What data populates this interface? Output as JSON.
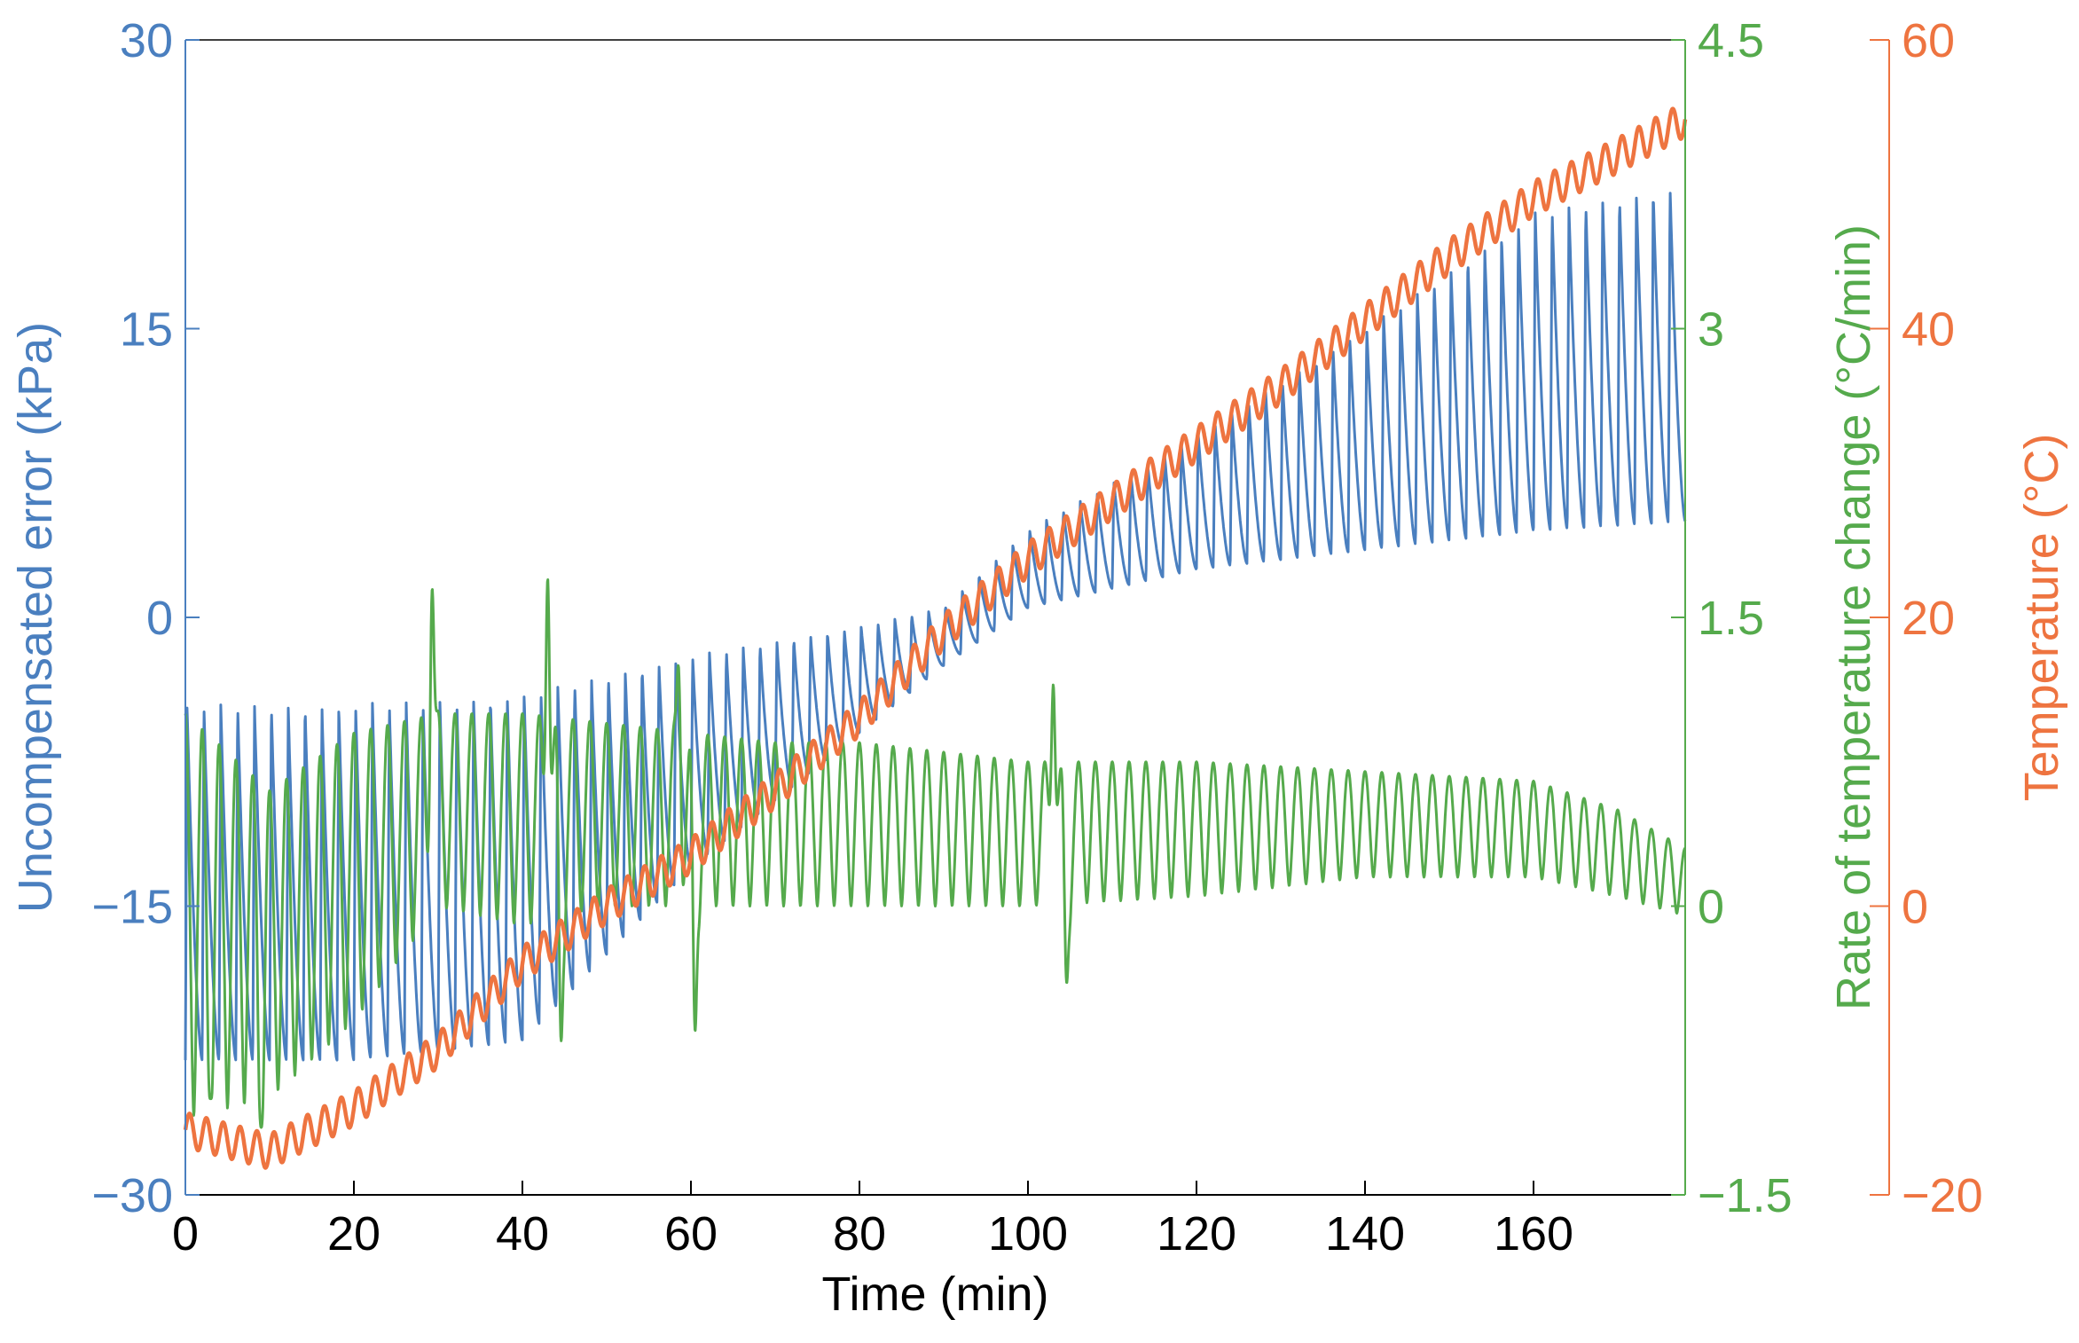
{
  "chart_data": {
    "type": "line",
    "title": "",
    "x_axis": {
      "label": "Time (min)",
      "range": [
        0,
        178
      ],
      "ticks": [
        0,
        20,
        40,
        60,
        80,
        100,
        120,
        140,
        160
      ],
      "tick_labels": [
        "0",
        "20",
        "40",
        "60",
        "80",
        "100",
        "120",
        "140",
        "160"
      ]
    },
    "y_axes": [
      {
        "id": "error",
        "side": "left",
        "label": "Uncompensated  error (kPa)",
        "color": "#4a7fbf",
        "range": [
          -30,
          30
        ],
        "ticks": [
          -30,
          -15,
          0,
          15,
          30
        ],
        "tick_labels": [
          "−30",
          "−15",
          "0",
          "15",
          "30"
        ]
      },
      {
        "id": "rate",
        "side": "right",
        "label": "Rate of temperature change (°C/min)",
        "color": "#55aa4c",
        "range": [
          -1.5,
          4.5
        ],
        "ticks": [
          -1.5,
          0,
          1.5,
          3,
          4.5
        ],
        "tick_labels": [
          "−1.5",
          "0",
          "1.5",
          "3",
          "4.5"
        ]
      },
      {
        "id": "temp",
        "side": "right-outer",
        "label": "Temperature (°C)",
        "color": "#ee7440",
        "range": [
          -20,
          60
        ],
        "ticks": [
          -20,
          0,
          20,
          40,
          60
        ],
        "tick_labels": [
          "−20",
          "0",
          "20",
          "40",
          "60"
        ]
      }
    ],
    "series": [
      {
        "axis": "error",
        "kind": "oscillating",
        "color": "#4a7fbf",
        "period_min": 2.0,
        "envelope_x": [
          0,
          20,
          40,
          60,
          80,
          90,
          100,
          110,
          120,
          140,
          160,
          178
        ],
        "upper": [
          -4.5,
          -4.5,
          -4.0,
          -2.0,
          -0.5,
          0.5,
          4.5,
          7.0,
          9.5,
          15.0,
          21.0,
          22.5
        ],
        "lower": [
          -23,
          -23,
          -22,
          -13,
          -6,
          -2.5,
          0.5,
          1.5,
          2.5,
          3.5,
          4.5,
          5.0
        ]
      },
      {
        "axis": "rate",
        "kind": "oscillating",
        "color": "#55aa4c",
        "period_min": 2.0,
        "envelope_x": [
          0,
          10,
          20,
          30,
          40,
          50,
          60,
          70,
          80,
          100,
          120,
          140,
          160,
          170,
          178
        ],
        "upper": [
          1.0,
          0.6,
          0.9,
          1.0,
          1.0,
          0.95,
          0.9,
          0.85,
          0.85,
          0.75,
          0.75,
          0.7,
          0.65,
          0.5,
          0.3
        ],
        "lower": [
          -1.1,
          -1.0,
          -0.6,
          0.0,
          -0.1,
          0.0,
          0.0,
          0.0,
          0.0,
          0.0,
          0.05,
          0.15,
          0.15,
          0.05,
          -0.05
        ],
        "spikes": [
          {
            "x": 3.0,
            "y": -1.0
          },
          {
            "x": 9.0,
            "y": -1.15
          },
          {
            "x": 29.3,
            "y": 1.65
          },
          {
            "x": 43.0,
            "y": 1.7
          },
          {
            "x": 44.6,
            "y": -0.7
          },
          {
            "x": 58.5,
            "y": 1.25
          },
          {
            "x": 60.5,
            "y": -0.65
          },
          {
            "x": 103.0,
            "y": 1.15
          },
          {
            "x": 104.6,
            "y": -0.4
          }
        ]
      },
      {
        "axis": "temp",
        "kind": "trend",
        "color": "#ee7440",
        "ripple_period_min": 2.0,
        "ripple_amplitude": 1.2,
        "x": [
          0,
          10,
          20,
          30,
          40,
          50,
          60,
          70,
          80,
          90,
          100,
          110,
          120,
          130,
          140,
          150,
          160,
          170,
          178
        ],
        "y": [
          -15.5,
          -17,
          -14,
          -10,
          -4,
          0,
          3.5,
          8,
          13,
          19,
          24,
          28,
          32,
          36,
          40.5,
          45,
          49,
          52,
          54.5
        ]
      }
    ]
  }
}
